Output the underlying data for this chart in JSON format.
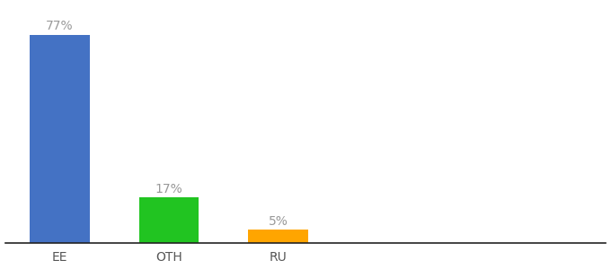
{
  "categories": [
    "EE",
    "OTH",
    "RU"
  ],
  "values": [
    77,
    17,
    5
  ],
  "bar_colors": [
    "#4472c4",
    "#21c421",
    "#ffa500"
  ],
  "labels": [
    "77%",
    "17%",
    "5%"
  ],
  "ylim": [
    0,
    88
  ],
  "background_color": "#ffffff",
  "label_color": "#999999",
  "label_fontsize": 10,
  "tick_fontsize": 10,
  "bar_width": 0.55,
  "x_positions": [
    0.5,
    1.5,
    2.5
  ],
  "xlim": [
    0.0,
    5.5
  ]
}
